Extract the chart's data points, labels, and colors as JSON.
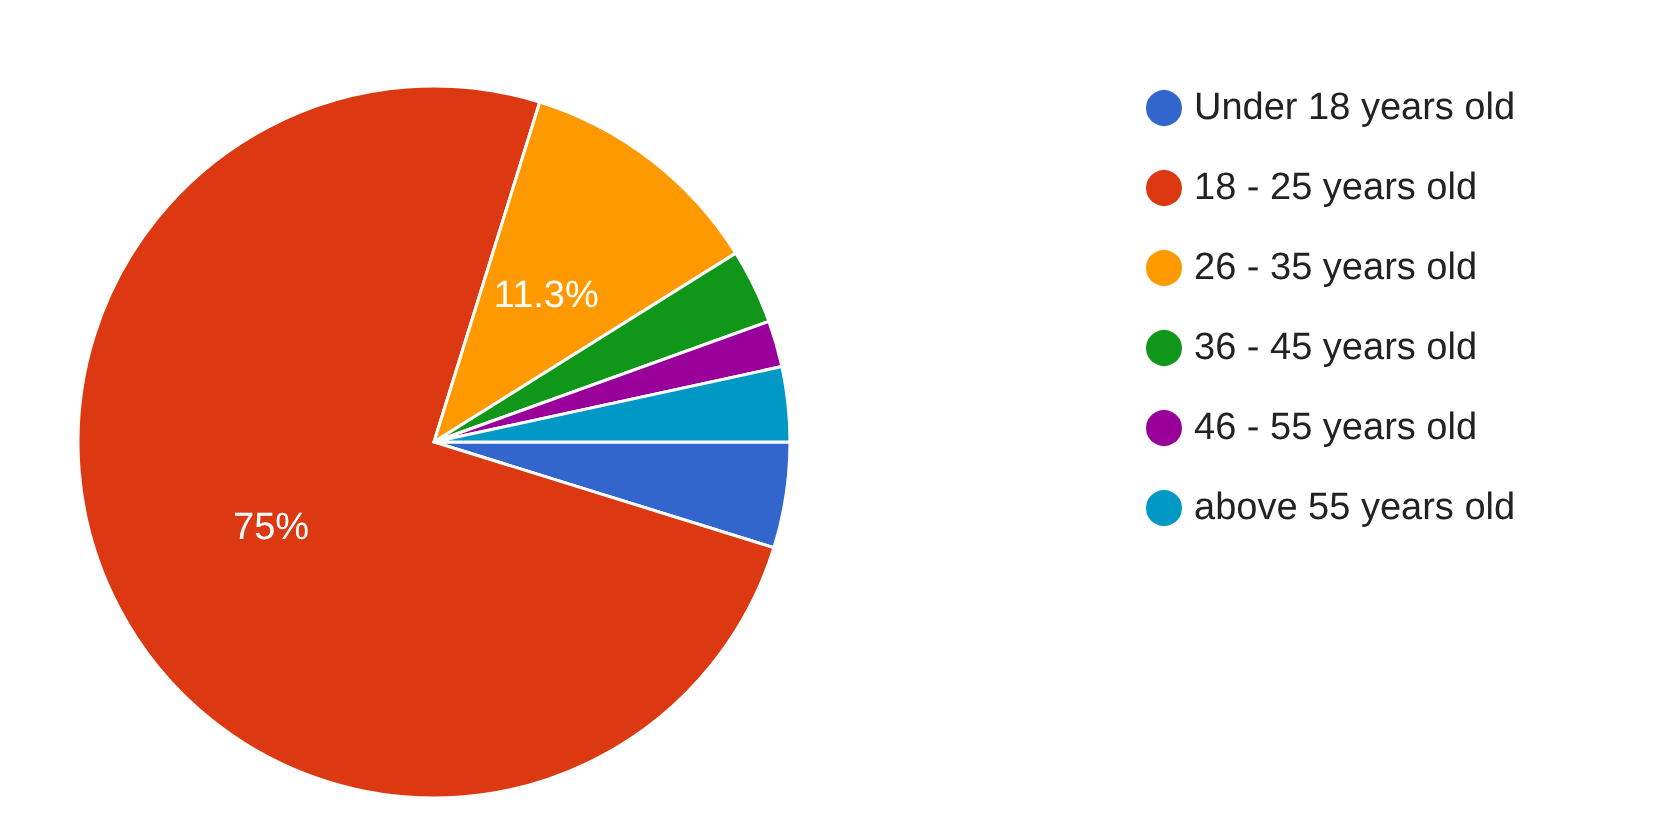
{
  "chart_data": {
    "type": "pie",
    "categories": [
      "Under 18 years old",
      "18 - 25 years old",
      "26 - 35 years old",
      "36 - 45 years old",
      "46 - 55 years old",
      "above 55 years old"
    ],
    "values": [
      4.8,
      75,
      11.3,
      3.4,
      2.1,
      3.4
    ],
    "value_labels": [
      null,
      "75%",
      "11.3%",
      null,
      null,
      null
    ],
    "colors": [
      "#3366cc",
      "#dc3912",
      "#ff9900",
      "#109618",
      "#990099",
      "#0099c6"
    ],
    "legend": "right"
  }
}
